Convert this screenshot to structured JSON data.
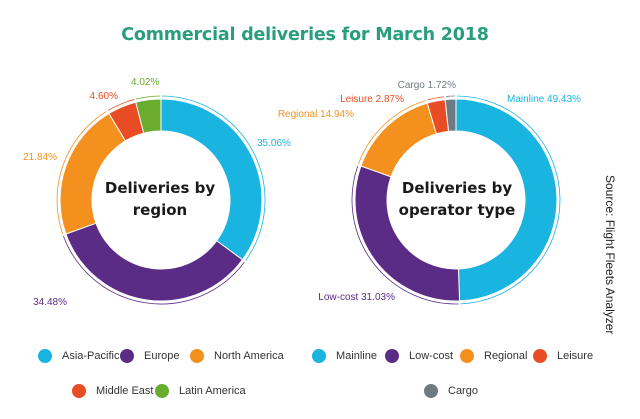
{
  "title": "Commercial deliveries for March 2018",
  "source": "Source: Flight Fleets Analyzer",
  "chart_data": [
    {
      "type": "pie",
      "center_label": [
        "Deliveries by",
        "region"
      ],
      "slices": [
        {
          "name": "Asia-Pacific",
          "value": 35.06,
          "label": "35.06%",
          "color": "#1ab4e0"
        },
        {
          "name": "Europe",
          "value": 34.48,
          "label": "34.48%",
          "color": "#5b2c86"
        },
        {
          "name": "North America",
          "value": 21.84,
          "label": "21.84%",
          "color": "#f4901e"
        },
        {
          "name": "Middle East",
          "value": 4.6,
          "label": "4.60%",
          "color": "#e84c24"
        },
        {
          "name": "Latin America",
          "value": 4.02,
          "label": "4.02%",
          "color": "#6aad2e"
        }
      ]
    },
    {
      "type": "pie",
      "center_label": [
        "Deliveries by",
        "operator type"
      ],
      "slices": [
        {
          "name": "Mainline",
          "value": 49.43,
          "label": "Mainline 49.43%",
          "color": "#1ab4e0"
        },
        {
          "name": "Low-cost",
          "value": 31.03,
          "label": "Low-cost 31.03%",
          "color": "#5b2c86"
        },
        {
          "name": "Regional",
          "value": 14.94,
          "label": "Regional 14.94%",
          "color": "#f4901e"
        },
        {
          "name": "Leisure",
          "value": 2.87,
          "label": "Leisure 2.87%",
          "color": "#e84c24"
        },
        {
          "name": "Cargo",
          "value": 1.72,
          "label": "Cargo 1.72%",
          "color": "#6e7b83"
        }
      ]
    }
  ],
  "legend_region": [
    {
      "label": "Asia-Pacific",
      "color": "#1ab4e0"
    },
    {
      "label": "Europe",
      "color": "#5b2c86"
    },
    {
      "label": "North America",
      "color": "#f4901e"
    },
    {
      "label": "Middle East",
      "color": "#e84c24"
    },
    {
      "label": "Latin America",
      "color": "#6aad2e"
    }
  ],
  "legend_operator": [
    {
      "label": "Mainline",
      "color": "#1ab4e0"
    },
    {
      "label": "Low-cost",
      "color": "#5b2c86"
    },
    {
      "label": "Regional",
      "color": "#f4901e"
    },
    {
      "label": "Leisure",
      "color": "#e84c24"
    },
    {
      "label": "Cargo",
      "color": "#6e7b83"
    }
  ]
}
